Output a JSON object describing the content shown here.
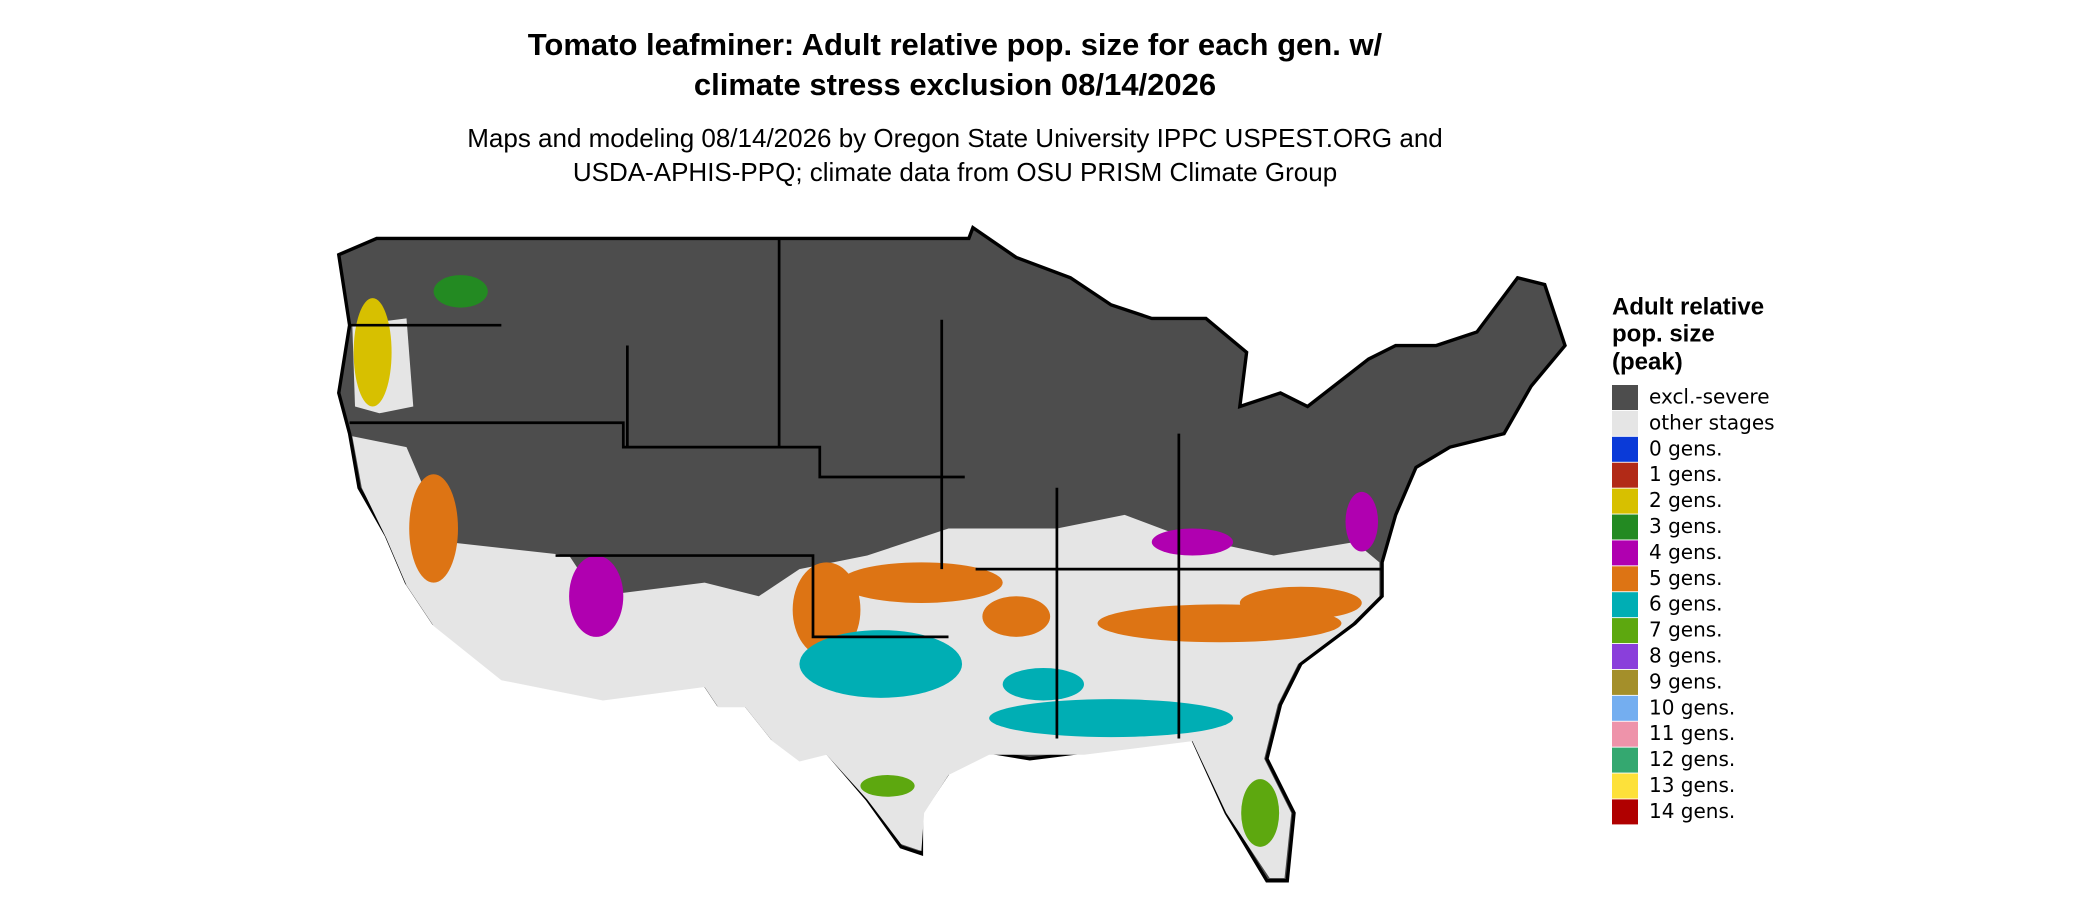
{
  "title": [
    "Tomato leafminer: Adult relative pop. size for each gen. w/",
    "climate stress exclusion 08/14/2026"
  ],
  "subtitle": [
    "Maps and modeling 08/14/2026 by Oregon State University IPPC USPEST.ORG and",
    "USDA-APHIS-PPQ; climate data from OSU PRISM Climate Group"
  ],
  "legend": {
    "title": [
      "Adult relative",
      "pop. size",
      "(peak)"
    ],
    "items": [
      {
        "label": "excl.-severe",
        "color": "#4d4d4d"
      },
      {
        "label": "other stages",
        "color": "#e5e5e5"
      },
      {
        "label": "0 gens.",
        "color": "#0a3ad8"
      },
      {
        "label": "1 gens.",
        "color": "#b22a17"
      },
      {
        "label": "2 gens.",
        "color": "#d7c000"
      },
      {
        "label": "3 gens.",
        "color": "#238a22"
      },
      {
        "label": "4 gens.",
        "color": "#b000b0"
      },
      {
        "label": "5 gens.",
        "color": "#dd7414"
      },
      {
        "label": "6 gens.",
        "color": "#00aeb4"
      },
      {
        "label": "7 gens.",
        "color": "#5da80f"
      },
      {
        "label": "8 gens.",
        "color": "#8a3fdb"
      },
      {
        "label": "9 gens.",
        "color": "#a48f2a"
      },
      {
        "label": "10 gens.",
        "color": "#74aef0"
      },
      {
        "label": "11 gens.",
        "color": "#ee93aa"
      },
      {
        "label": "12 gens.",
        "color": "#34a870"
      },
      {
        "label": "13 gens.",
        "color": "#fde13a"
      },
      {
        "label": "14 gens.",
        "color": "#b00000"
      }
    ]
  }
}
